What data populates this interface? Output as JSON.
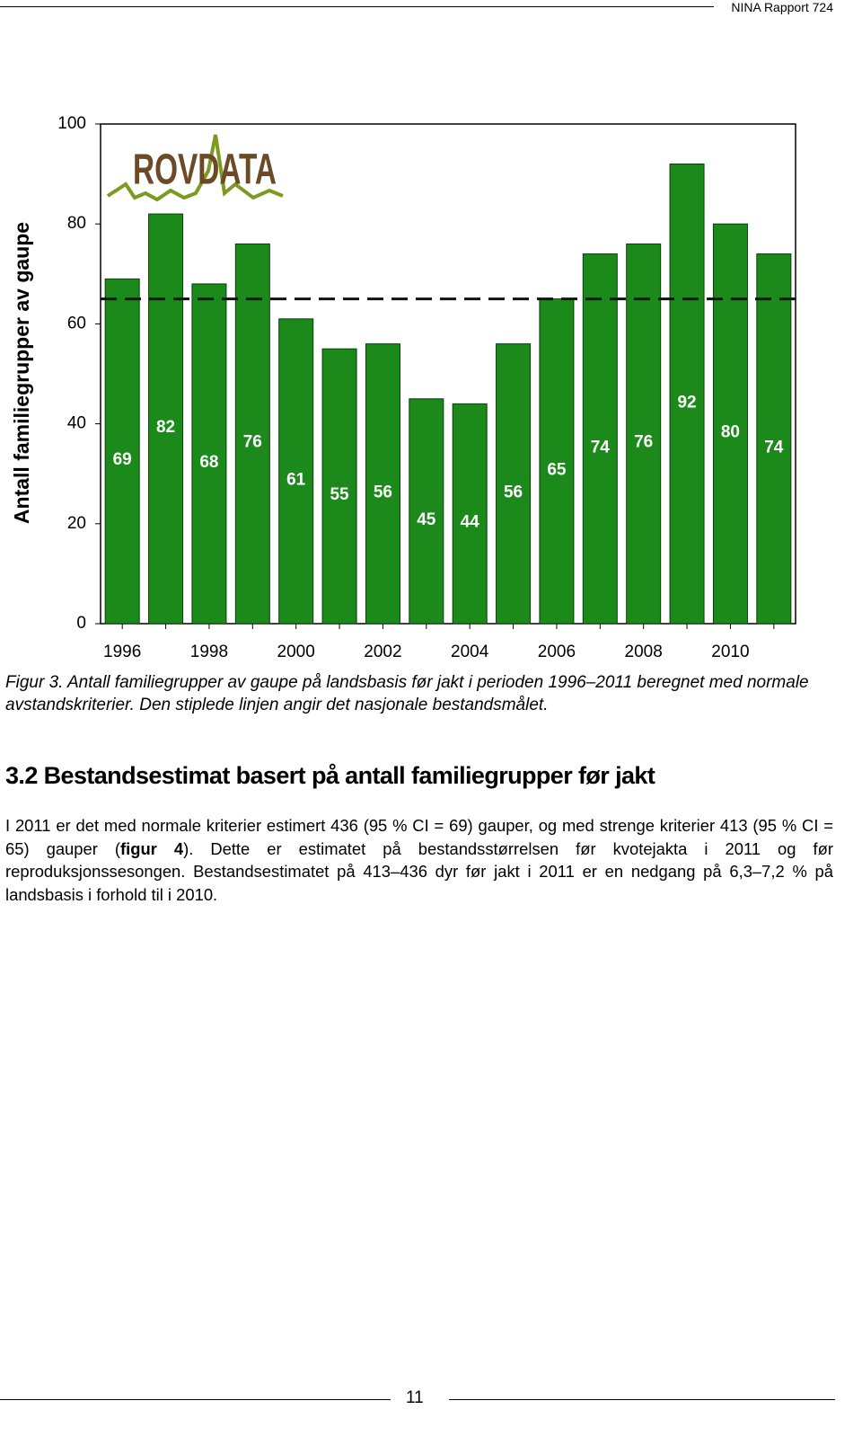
{
  "header": {
    "report": "NINA Rapport 724"
  },
  "chart_data": {
    "type": "bar",
    "logo": "ROVDATA",
    "y_label": "Antall familiegrupper av gaupe",
    "categories": [
      "1996",
      null,
      "1998",
      null,
      "2000",
      null,
      "2002",
      null,
      "2004",
      null,
      "2006",
      null,
      "2008",
      null,
      "2010",
      null
    ],
    "values": [
      69,
      82,
      68,
      76,
      61,
      55,
      56,
      45,
      44,
      56,
      65,
      74,
      76,
      92,
      80,
      74
    ],
    "color": "#1b8a1b",
    "ylim": [
      0,
      100
    ],
    "yticks": [
      0,
      20,
      40,
      60,
      80,
      100
    ],
    "reference_line": 65
  },
  "caption": {
    "label": "Figur 3",
    "text": ". Antall familiegrupper av gaupe på landsbasis før jakt i perioden 1996–2011 beregnet med normale avstandskriterier. Den stiplede linjen angir det nasjonale bestandsmålet."
  },
  "section": {
    "heading": "3.2 Bestandsestimat basert på antall familiegrupper før jakt"
  },
  "body": {
    "parts": [
      "I 2011 er det med normale kriterier estimert 436 (95 % CI = 69) gauper, og med strenge kriteri­er 413 (95 % CI = 65) gauper (",
      "figur 4",
      "). Dette er estimatet på bestandsstørrelsen før kvotejakta i 2011 og før reproduksjonssesongen. Bestandsestimatet på 413–436 dyr før jakt i 2011 er en nedgang på 6,3–7,2 % på landsbasis i forhold til i 2010."
    ]
  },
  "footer": {
    "page": "11"
  }
}
